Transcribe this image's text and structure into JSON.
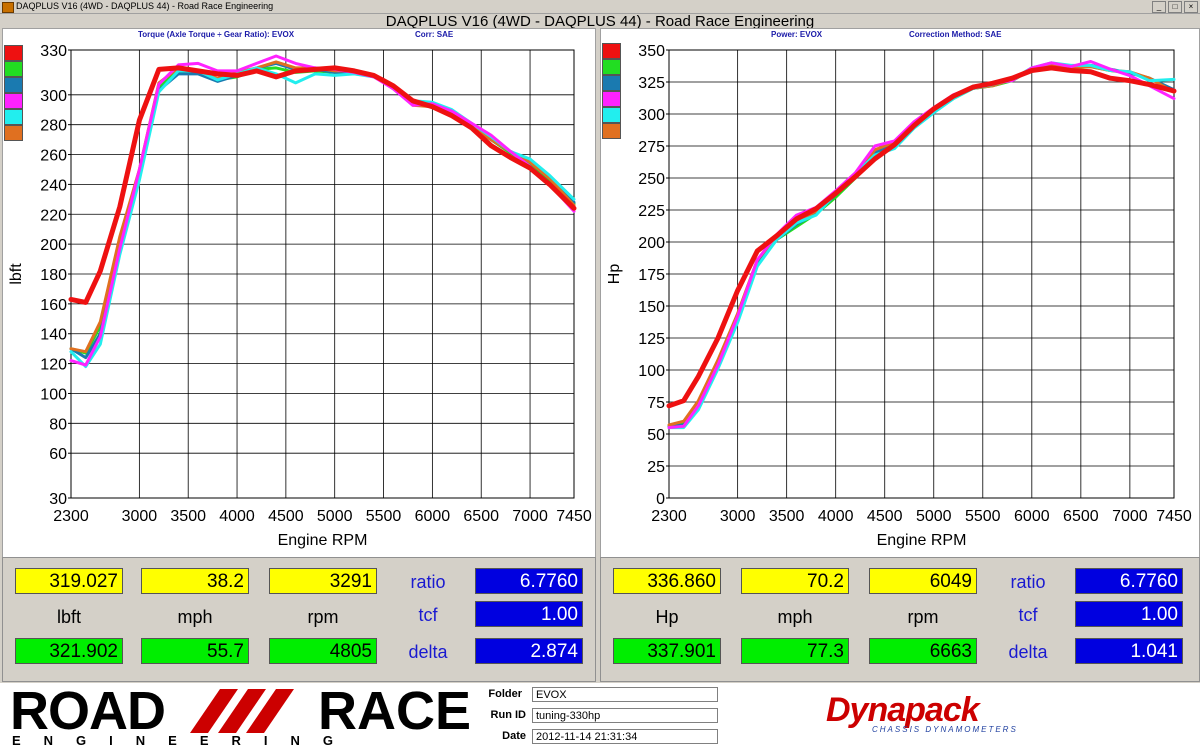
{
  "window": {
    "app_title": "DAQPLUS V16 (4WD - DAQPLUS 44) - Road Race Engineering",
    "main_title": "DAQPLUS V16 (4WD - DAQPLUS 44) - Road Race Engineering"
  },
  "colors": {
    "red": "#ee1111",
    "green": "#22dd22",
    "blue": "#1a7ab0",
    "magenta": "#ff22ff",
    "cyan": "#22eeee",
    "orange": "#e07020"
  },
  "series_colors": [
    "red",
    "green",
    "blue",
    "magenta",
    "cyan",
    "orange"
  ],
  "chart_data": [
    {
      "type": "line",
      "title": "Torque (Axle Torque ÷ Gear Ratio): EVOX",
      "correction": "Corr: SAE",
      "xlabel": "Engine RPM",
      "ylabel": "lbft",
      "xlim": [
        2300,
        7450
      ],
      "ylim": [
        30,
        330
      ],
      "xticks": [
        "2300",
        "3000",
        "3500",
        "4000",
        "4500",
        "5000",
        "5500",
        "6000",
        "6500",
        "7000",
        "7450"
      ],
      "xtick_values": [
        2300,
        3000,
        3500,
        4000,
        4500,
        5000,
        5500,
        6000,
        6500,
        7000,
        7450
      ],
      "yticks": [
        "330",
        "300",
        "280",
        "260",
        "240",
        "220",
        "200",
        "180",
        "160",
        "140",
        "120",
        "100",
        "80",
        "60",
        "30"
      ],
      "ytick_values": [
        330,
        300,
        280,
        260,
        240,
        220,
        200,
        180,
        160,
        140,
        120,
        100,
        80,
        60,
        30
      ],
      "grid": true,
      "series": [
        {
          "color": "red",
          "x": [
            2300,
            2450,
            2600,
            2800,
            3000,
            3200,
            3400,
            3600,
            3800,
            4000,
            4200,
            4400,
            4600,
            4800,
            5000,
            5200,
            5400,
            5600,
            5800,
            6000,
            6200,
            6400,
            6600,
            6800,
            7000,
            7200,
            7450
          ],
          "y": [
            163,
            161,
            182,
            225,
            283,
            317,
            318,
            316,
            314,
            313,
            316,
            312,
            316,
            317,
            318,
            316,
            313,
            306,
            296,
            292,
            286,
            278,
            266,
            258,
            251,
            240,
            224
          ]
        },
        {
          "color": "green",
          "x": [
            2300,
            2450,
            2600,
            2800,
            3000,
            3200,
            3400,
            3600,
            3800,
            4000,
            4200,
            4400,
            4600,
            4800,
            5000,
            5200,
            5400,
            5600,
            5800,
            6000,
            6200,
            6400,
            6600,
            6800,
            7000,
            7200,
            7450
          ],
          "y": [
            130,
            127,
            145,
            200,
            248,
            305,
            316,
            315,
            310,
            312,
            317,
            318,
            315,
            316,
            315,
            315,
            313,
            304,
            294,
            293,
            288,
            279,
            270,
            261,
            254,
            243,
            227
          ]
        },
        {
          "color": "blue",
          "x": [
            2300,
            2450,
            2600,
            2800,
            3000,
            3200,
            3400,
            3600,
            3800,
            4000,
            4200,
            4400,
            4600,
            4800,
            5000,
            5200,
            5400,
            5600,
            5800,
            6000,
            6200,
            6400,
            6600,
            6800,
            7000,
            7200,
            7450
          ],
          "y": [
            130,
            124,
            140,
            195,
            245,
            303,
            314,
            314,
            309,
            313,
            318,
            321,
            317,
            317,
            315,
            314,
            313,
            305,
            294,
            294,
            289,
            280,
            270,
            262,
            255,
            244,
            228
          ]
        },
        {
          "color": "magenta",
          "x": [
            2300,
            2450,
            2600,
            2800,
            3000,
            3200,
            3400,
            3600,
            3800,
            4000,
            4200,
            4400,
            4600,
            4800,
            5000,
            5200,
            5400,
            5600,
            5800,
            6000,
            6200,
            6400,
            6600,
            6800,
            7000,
            7200,
            7450
          ],
          "y": [
            122,
            119,
            138,
            197,
            250,
            307,
            320,
            321,
            316,
            316,
            321,
            326,
            321,
            318,
            317,
            315,
            312,
            304,
            293,
            294,
            289,
            281,
            273,
            262,
            252,
            240,
            222
          ]
        },
        {
          "color": "cyan",
          "x": [
            2300,
            2450,
            2600,
            2800,
            3000,
            3200,
            3400,
            3600,
            3800,
            4000,
            4200,
            4400,
            4600,
            4800,
            5000,
            5200,
            5400,
            5600,
            5800,
            6000,
            6200,
            6400,
            6600,
            6800,
            7000,
            7200,
            7450
          ],
          "y": [
            128,
            118,
            133,
            193,
            243,
            302,
            316,
            316,
            310,
            314,
            318,
            314,
            308,
            314,
            313,
            314,
            312,
            305,
            296,
            295,
            290,
            281,
            272,
            262,
            257,
            246,
            230
          ]
        },
        {
          "color": "orange",
          "x": [
            2300,
            2450,
            2600,
            2800,
            3000,
            3200,
            3400,
            3600,
            3800,
            4000,
            4200,
            4400,
            4600,
            4800,
            5000,
            5200,
            5400,
            5600,
            5800,
            6000,
            6200,
            6400,
            6600,
            6800,
            7000,
            7200,
            7450
          ],
          "y": [
            130,
            128,
            148,
            205,
            250,
            308,
            318,
            316,
            311,
            315,
            318,
            322,
            318,
            318,
            316,
            316,
            313,
            305,
            293,
            292,
            288,
            280,
            270,
            262,
            255,
            244,
            226
          ]
        }
      ]
    },
    {
      "type": "line",
      "title": "Power: EVOX",
      "correction": "Correction Method: SAE",
      "xlabel": "Engine RPM",
      "ylabel": "Hp",
      "xlim": [
        2300,
        7450
      ],
      "ylim": [
        0,
        350
      ],
      "xticks": [
        "2300",
        "3000",
        "3500",
        "4000",
        "4500",
        "5000",
        "5500",
        "6000",
        "6500",
        "7000",
        "7450"
      ],
      "xtick_values": [
        2300,
        3000,
        3500,
        4000,
        4500,
        5000,
        5500,
        6000,
        6500,
        7000,
        7450
      ],
      "yticks": [
        "350",
        "325",
        "300",
        "275",
        "250",
        "225",
        "200",
        "175",
        "150",
        "125",
        "100",
        "75",
        "50",
        "25",
        "0"
      ],
      "ytick_values": [
        350,
        325,
        300,
        275,
        250,
        225,
        200,
        175,
        150,
        125,
        100,
        75,
        50,
        25,
        0
      ],
      "grid": true,
      "series": [
        {
          "color": "red",
          "x": [
            2300,
            2450,
            2600,
            2800,
            3000,
            3200,
            3400,
            3600,
            3800,
            4000,
            4200,
            4400,
            4600,
            4800,
            5000,
            5200,
            5400,
            5600,
            5800,
            6000,
            6200,
            6400,
            6600,
            6800,
            7000,
            7200,
            7450
          ],
          "y": [
            72,
            76,
            95,
            125,
            162,
            193,
            205,
            218,
            226,
            238,
            251,
            265,
            276,
            291,
            304,
            314,
            321,
            324,
            328,
            334,
            336,
            334,
            333,
            328,
            326,
            323,
            318
          ]
        },
        {
          "color": "green",
          "x": [
            2300,
            2450,
            2600,
            2800,
            3000,
            3200,
            3400,
            3600,
            3800,
            4000,
            4200,
            4400,
            4600,
            4800,
            5000,
            5200,
            5400,
            5600,
            5800,
            6000,
            6200,
            6400,
            6600,
            6800,
            7000,
            7200,
            7450
          ],
          "y": [
            56,
            58,
            72,
            105,
            140,
            183,
            202,
            212,
            222,
            235,
            250,
            268,
            275,
            290,
            302,
            312,
            320,
            322,
            326,
            335,
            338,
            336,
            337,
            334,
            332,
            328,
            318
          ]
        },
        {
          "color": "blue",
          "x": [
            2300,
            2450,
            2600,
            2800,
            3000,
            3200,
            3400,
            3600,
            3800,
            4000,
            4200,
            4400,
            4600,
            4800,
            5000,
            5200,
            5400,
            5600,
            5800,
            6000,
            6200,
            6400,
            6600,
            6800,
            7000,
            7200,
            7450
          ],
          "y": [
            56,
            57,
            70,
            102,
            138,
            182,
            202,
            214,
            222,
            237,
            252,
            270,
            277,
            291,
            303,
            313,
            320,
            323,
            327,
            336,
            339,
            337,
            338,
            335,
            332,
            328,
            319
          ]
        },
        {
          "color": "magenta",
          "x": [
            2300,
            2450,
            2600,
            2800,
            3000,
            3200,
            3400,
            3600,
            3800,
            4000,
            4200,
            4400,
            4600,
            4800,
            5000,
            5200,
            5400,
            5600,
            5800,
            6000,
            6200,
            6400,
            6600,
            6800,
            7000,
            7200,
            7450
          ],
          "y": [
            55,
            56,
            72,
            104,
            142,
            186,
            206,
            221,
            227,
            240,
            254,
            275,
            279,
            294,
            305,
            315,
            321,
            324,
            326,
            336,
            340,
            337,
            341,
            335,
            330,
            322,
            312
          ]
        },
        {
          "color": "cyan",
          "x": [
            2300,
            2450,
            2600,
            2800,
            3000,
            3200,
            3400,
            3600,
            3800,
            4000,
            4200,
            4400,
            4600,
            4800,
            5000,
            5200,
            5400,
            5600,
            5800,
            6000,
            6200,
            6400,
            6600,
            6800,
            7000,
            7200,
            7450
          ],
          "y": [
            55,
            55,
            69,
            101,
            137,
            181,
            202,
            215,
            221,
            238,
            253,
            268,
            273,
            289,
            301,
            312,
            320,
            323,
            327,
            336,
            340,
            338,
            338,
            334,
            333,
            326,
            327
          ]
        },
        {
          "color": "orange",
          "x": [
            2300,
            2450,
            2600,
            2800,
            3000,
            3200,
            3400,
            3600,
            3800,
            4000,
            4200,
            4400,
            4600,
            4800,
            5000,
            5200,
            5400,
            5600,
            5800,
            6000,
            6200,
            6400,
            6600,
            6800,
            7000,
            7200,
            7450
          ],
          "y": [
            57,
            60,
            76,
            108,
            144,
            186,
            204,
            216,
            224,
            238,
            252,
            272,
            278,
            292,
            303,
            314,
            320,
            322,
            327,
            335,
            338,
            336,
            337,
            334,
            333,
            328,
            317
          ]
        }
      ]
    }
  ],
  "readouts": {
    "left": {
      "y1": "319.027",
      "y2": "38.2",
      "y3": "3291",
      "unit_main": "lbft",
      "unit_mph": "mph",
      "unit_rpm": "rpm",
      "g1": "321.902",
      "g2": "55.7",
      "g3": "4805",
      "ratio_label": "ratio",
      "ratio": "6.7760",
      "tcf_label": "tcf",
      "tcf": "1.00",
      "delta_label": "delta",
      "delta": "2.874"
    },
    "right": {
      "y1": "336.860",
      "y2": "70.2",
      "y3": "6049",
      "unit_main": "Hp",
      "unit_mph": "mph",
      "unit_rpm": "rpm",
      "g1": "337.901",
      "g2": "77.3",
      "g3": "6663",
      "ratio_label": "ratio",
      "ratio": "6.7760",
      "tcf_label": "tcf",
      "tcf": "1.00",
      "delta_label": "delta",
      "delta": "1.041"
    }
  },
  "footer": {
    "logo_road": "ROAD",
    "logo_race": "RACE",
    "logo_engineering": "ENGINEERING",
    "folder_label": "Folder",
    "folder_value": "EVOX",
    "runid_label": "Run ID",
    "runid_value": "tuning-330hp",
    "date_label": "Date",
    "date_value": "2012-11-14 21:31:34",
    "dyna_logo": "Dynapack",
    "dyna_sub": "CHASSIS DYNAMOMETERS"
  }
}
